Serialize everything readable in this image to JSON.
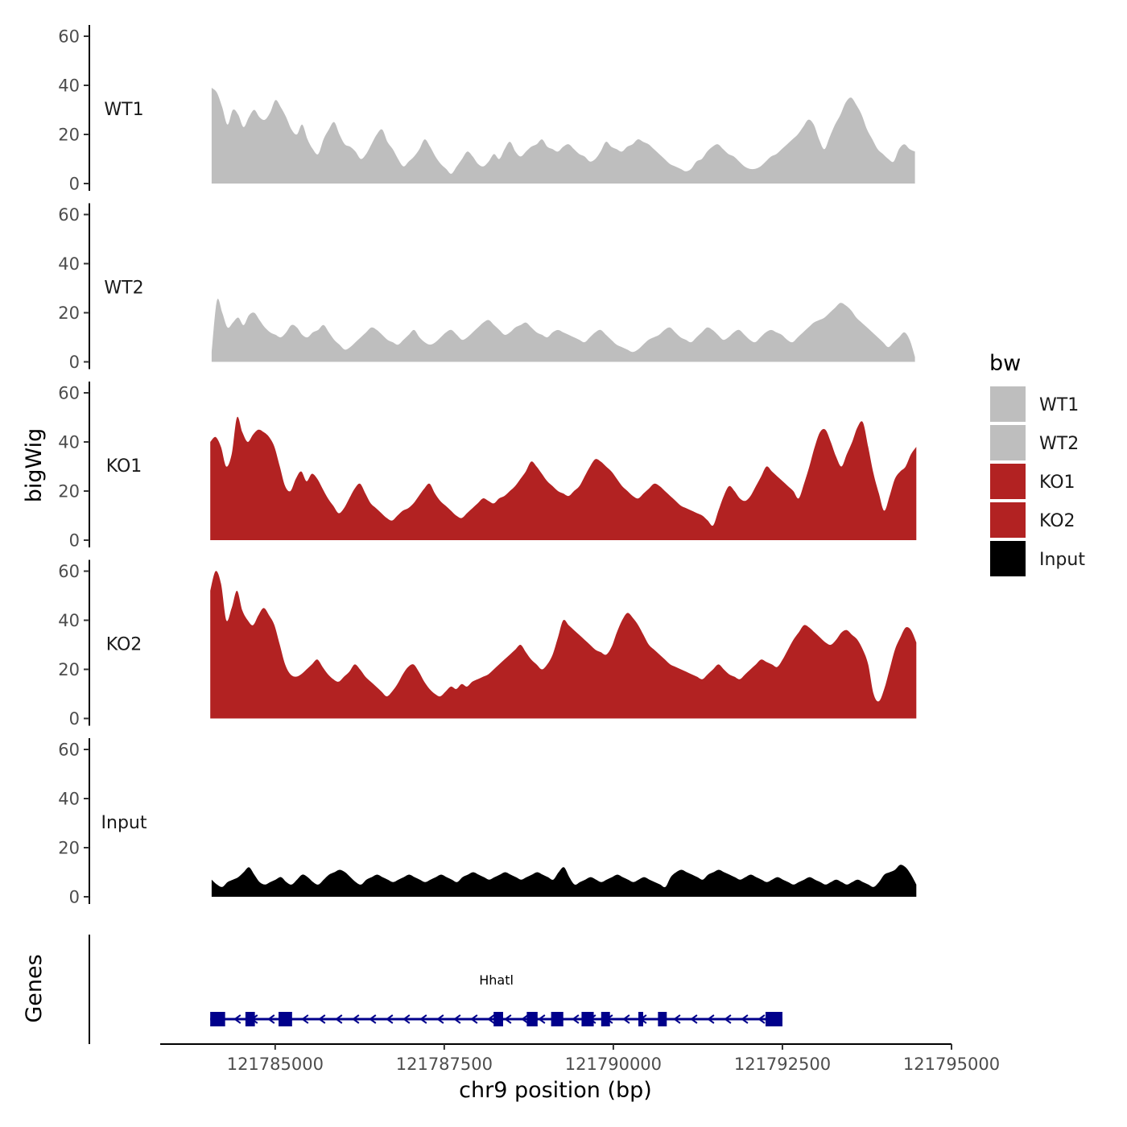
{
  "chart_data": {
    "type": "area",
    "description_free": true,
    "y_axis_title": "bigWig",
    "genes_axis_title": "Genes",
    "x_axis_title": "chr9 position (bp)",
    "x_range": [
      121783300,
      121795000
    ],
    "x_ticks": [
      121785000,
      121787500,
      121790000,
      121792500,
      121795000
    ],
    "x_tick_labels": [
      "121785000",
      "121787500",
      "121790000",
      "121792500",
      "121795000"
    ],
    "y_range": [
      0,
      60
    ],
    "y_ticks": [
      0,
      20,
      40,
      60
    ],
    "y_tick_labels": [
      "0",
      "20",
      "40",
      "60"
    ],
    "legend": {
      "title": "bw",
      "entries": [
        {
          "label": "WT1",
          "color": "#bebebe"
        },
        {
          "label": "WT2",
          "color": "#bebebe"
        },
        {
          "label": "KO1",
          "color": "#b22222"
        },
        {
          "label": "KO2",
          "color": "#b22222"
        },
        {
          "label": "Input",
          "color": "#000000"
        }
      ]
    },
    "tracks": [
      {
        "name": "WT1",
        "color": "#bebebe",
        "x_start": 121784060,
        "x_end": 121794460,
        "values": [
          39,
          37,
          31,
          24,
          30,
          28,
          23,
          27,
          30,
          27,
          26,
          29,
          34,
          31,
          27,
          22,
          20,
          24,
          18,
          14,
          12,
          18,
          22,
          25,
          20,
          16,
          15,
          13,
          10,
          12,
          16,
          20,
          22,
          17,
          14,
          10,
          7,
          9,
          11,
          14,
          18,
          15,
          11,
          8,
          6,
          4,
          7,
          10,
          13,
          11,
          8,
          7,
          9,
          12,
          10,
          14,
          17,
          13,
          11,
          13,
          15,
          16,
          18,
          15,
          14,
          13,
          15,
          16,
          14,
          12,
          11,
          9,
          10,
          13,
          17,
          15,
          14,
          13,
          15,
          16,
          18,
          17,
          16,
          14,
          12,
          10,
          8,
          7,
          6,
          5,
          6,
          9,
          10,
          13,
          15,
          16,
          14,
          12,
          11,
          9,
          7,
          6,
          6,
          7,
          9,
          11,
          12,
          14,
          16,
          18,
          20,
          23,
          26,
          24,
          18,
          14,
          19,
          24,
          28,
          33,
          35,
          32,
          28,
          22,
          18,
          14,
          12,
          10,
          9,
          14,
          16,
          14,
          13
        ]
      },
      {
        "name": "WT2",
        "color": "#bebebe",
        "x_start": 121784060,
        "x_end": 121794460,
        "values": [
          4,
          25,
          20,
          14,
          16,
          18,
          15,
          19,
          20,
          17,
          14,
          12,
          11,
          10,
          12,
          15,
          14,
          11,
          10,
          12,
          13,
          15,
          12,
          9,
          7,
          5,
          6,
          8,
          10,
          12,
          14,
          13,
          11,
          9,
          8,
          7,
          9,
          11,
          13,
          10,
          8,
          7,
          8,
          10,
          12,
          13,
          11,
          9,
          10,
          12,
          14,
          16,
          17,
          15,
          13,
          11,
          12,
          14,
          15,
          16,
          14,
          12,
          11,
          10,
          12,
          13,
          12,
          11,
          10,
          9,
          8,
          10,
          12,
          13,
          11,
          9,
          7,
          6,
          5,
          4,
          5,
          7,
          9,
          10,
          11,
          13,
          14,
          12,
          10,
          9,
          8,
          10,
          12,
          14,
          13,
          11,
          9,
          10,
          12,
          13,
          11,
          9,
          8,
          10,
          12,
          13,
          12,
          11,
          9,
          8,
          10,
          12,
          14,
          16,
          17,
          18,
          20,
          22,
          24,
          23,
          21,
          18,
          16,
          14,
          12,
          10,
          8,
          6,
          8,
          10,
          12,
          9,
          2
        ]
      },
      {
        "name": "KO1",
        "color": "#b22222",
        "x_start": 121784040,
        "x_end": 121794480,
        "values": [
          40,
          42,
          38,
          30,
          35,
          50,
          44,
          40,
          43,
          45,
          44,
          42,
          38,
          30,
          22,
          20,
          25,
          28,
          24,
          27,
          25,
          21,
          17,
          14,
          11,
          13,
          17,
          21,
          23,
          19,
          15,
          13,
          11,
          9,
          8,
          10,
          12,
          13,
          15,
          18,
          21,
          23,
          19,
          16,
          14,
          12,
          10,
          9,
          11,
          13,
          15,
          17,
          16,
          15,
          17,
          18,
          20,
          22,
          25,
          28,
          32,
          30,
          27,
          24,
          22,
          20,
          19,
          18,
          20,
          22,
          26,
          30,
          33,
          32,
          30,
          28,
          25,
          22,
          20,
          18,
          17,
          19,
          21,
          23,
          22,
          20,
          18,
          16,
          14,
          13,
          12,
          11,
          10,
          8,
          6,
          12,
          18,
          22,
          20,
          17,
          16,
          18,
          22,
          26,
          30,
          28,
          26,
          24,
          22,
          20,
          17,
          23,
          30,
          38,
          44,
          45,
          40,
          34,
          30,
          35,
          40,
          46,
          48,
          38,
          27,
          19,
          12,
          18,
          25,
          28,
          30,
          35,
          38
        ]
      },
      {
        "name": "KO2",
        "color": "#b22222",
        "x_start": 121784040,
        "x_end": 121794480,
        "values": [
          52,
          60,
          55,
          40,
          45,
          52,
          44,
          40,
          38,
          42,
          45,
          42,
          38,
          30,
          22,
          18,
          17,
          18,
          20,
          22,
          24,
          21,
          18,
          16,
          15,
          17,
          19,
          22,
          20,
          17,
          15,
          13,
          11,
          9,
          11,
          14,
          18,
          21,
          22,
          19,
          15,
          12,
          10,
          9,
          11,
          13,
          12,
          14,
          13,
          15,
          16,
          17,
          18,
          20,
          22,
          24,
          26,
          28,
          30,
          27,
          24,
          22,
          20,
          22,
          26,
          33,
          40,
          38,
          36,
          34,
          32,
          30,
          28,
          27,
          26,
          29,
          35,
          40,
          43,
          41,
          38,
          34,
          30,
          28,
          26,
          24,
          22,
          21,
          20,
          19,
          18,
          17,
          16,
          18,
          20,
          22,
          20,
          18,
          17,
          16,
          18,
          20,
          22,
          24,
          23,
          22,
          21,
          24,
          28,
          32,
          35,
          38,
          37,
          35,
          33,
          31,
          30,
          32,
          35,
          36,
          34,
          32,
          28,
          22,
          10,
          7,
          12,
          20,
          28,
          33,
          37,
          36,
          31
        ]
      },
      {
        "name": "Input",
        "color": "#000000",
        "x_start": 121784060,
        "x_end": 121794480,
        "values": [
          7,
          5,
          4,
          6,
          7,
          8,
          10,
          12,
          9,
          6,
          5,
          6,
          7,
          8,
          6,
          5,
          7,
          9,
          8,
          6,
          5,
          7,
          9,
          10,
          11,
          10,
          8,
          6,
          5,
          7,
          8,
          9,
          8,
          7,
          6,
          7,
          8,
          9,
          8,
          7,
          6,
          7,
          8,
          9,
          8,
          7,
          6,
          8,
          9,
          10,
          9,
          8,
          7,
          8,
          9,
          10,
          9,
          8,
          7,
          8,
          9,
          10,
          9,
          8,
          7,
          10,
          12,
          8,
          5,
          6,
          7,
          8,
          7,
          6,
          7,
          8,
          9,
          8,
          7,
          6,
          7,
          8,
          7,
          6,
          5,
          4,
          8,
          10,
          11,
          10,
          9,
          8,
          7,
          9,
          10,
          11,
          10,
          9,
          8,
          7,
          8,
          9,
          8,
          7,
          6,
          7,
          8,
          7,
          6,
          5,
          6,
          7,
          8,
          7,
          6,
          5,
          6,
          7,
          6,
          5,
          6,
          7,
          6,
          5,
          4,
          6,
          9,
          10,
          11,
          13,
          12,
          9,
          5
        ]
      }
    ],
    "gene": {
      "name": "Hhatl",
      "strand": "-",
      "start": 121784040,
      "end": 121792500,
      "exons": [
        {
          "start": 121784040,
          "end": 121784260
        },
        {
          "start": 121784560,
          "end": 121784700
        },
        {
          "start": 121785050,
          "end": 121785250
        },
        {
          "start": 121788230,
          "end": 121788370
        },
        {
          "start": 121788720,
          "end": 121788880
        },
        {
          "start": 121789080,
          "end": 121789260
        },
        {
          "start": 121789530,
          "end": 121789710
        },
        {
          "start": 121789820,
          "end": 121789950
        },
        {
          "start": 121790370,
          "end": 121790430
        },
        {
          "start": 121790660,
          "end": 121790790
        },
        {
          "start": 121792250,
          "end": 121792500
        }
      ]
    }
  }
}
